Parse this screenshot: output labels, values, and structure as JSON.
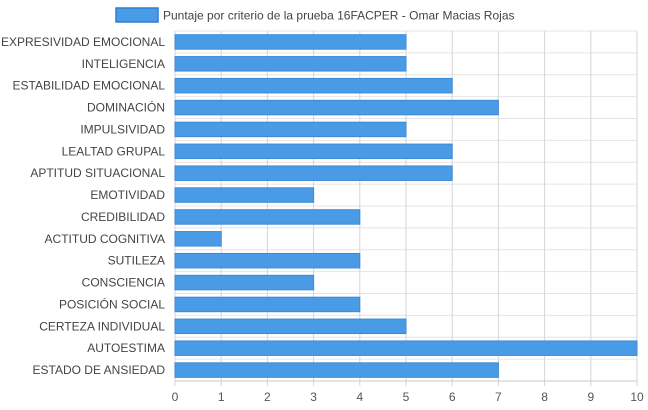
{
  "chart_data": {
    "type": "bar",
    "orientation": "horizontal",
    "title": "",
    "xlabel": "",
    "ylabel": "",
    "xlim": [
      0,
      10
    ],
    "x_ticks": [
      0,
      1,
      2,
      3,
      4,
      5,
      6,
      7,
      8,
      9,
      10
    ],
    "grid": true,
    "legend_position": "top",
    "colors": {
      "bar": "#4a9be6",
      "bar_border": "#3d8ad6",
      "grid": "#d6d6d6"
    },
    "categories": [
      "EXPRESIVIDAD EMOCIONAL",
      "INTELIGENCIA",
      "ESTABILIDAD EMOCIONAL",
      "DOMINACIÓN",
      "IMPULSIVIDAD",
      "LEALTAD GRUPAL",
      "APTITUD SITUACIONAL",
      "EMOTIVIDAD",
      "CREDIBILIDAD",
      "ACTITUD COGNITIVA",
      "SUTILEZA",
      "CONSCIENCIA",
      "POSICIÓN SOCIAL",
      "CERTEZA INDIVIDUAL",
      "AUTOESTIMA",
      "ESTADO DE ANSIEDAD"
    ],
    "series": [
      {
        "name": "Puntaje por criterio de la prueba 16FACPER - Omar Macias Rojas",
        "values": [
          5,
          5,
          6,
          7,
          5,
          6,
          6,
          3,
          4,
          1,
          4,
          3,
          4,
          5,
          10,
          7
        ]
      }
    ]
  }
}
